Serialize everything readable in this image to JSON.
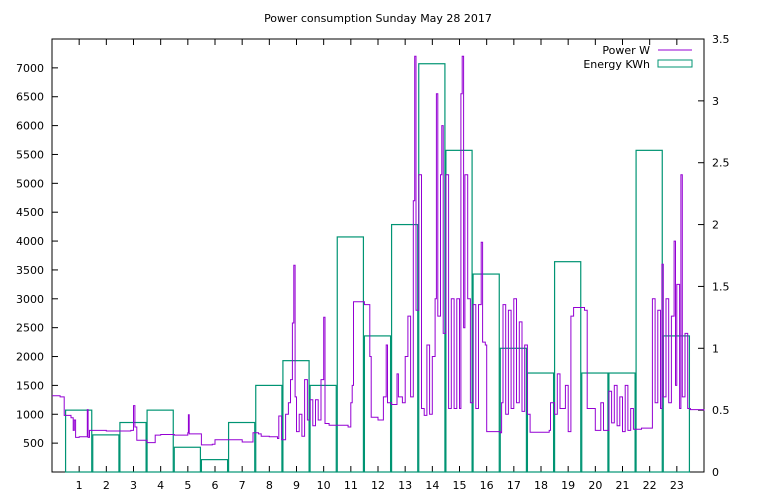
{
  "chart_data": {
    "type": "line",
    "title": "Power consumption Sunday May 28 2017",
    "x": {
      "range": [
        0,
        24
      ],
      "ticks": [
        1,
        2,
        3,
        4,
        5,
        6,
        7,
        8,
        9,
        10,
        11,
        12,
        13,
        14,
        15,
        16,
        17,
        18,
        19,
        20,
        21,
        22,
        23
      ],
      "tick_labels": [
        "1",
        "2",
        "3",
        "4",
        "5",
        "6",
        "7",
        "8",
        "9",
        "10",
        "11",
        "12",
        "13",
        "14",
        "15",
        "16",
        "17",
        "18",
        "19",
        "20",
        "21",
        "22",
        "23"
      ]
    },
    "y_left": {
      "range": [
        0,
        7500
      ],
      "ticks": [
        500,
        1000,
        1500,
        2000,
        2500,
        3000,
        3500,
        4000,
        4500,
        5000,
        5500,
        6000,
        6500,
        7000
      ],
      "tick_labels": [
        "500",
        "1000",
        "1500",
        "2000",
        "2500",
        "3000",
        "3500",
        "4000",
        "4500",
        "5000",
        "5500",
        "6000",
        "6500",
        "7000"
      ]
    },
    "y_right": {
      "range": [
        0,
        3.5
      ],
      "ticks": [
        0,
        0.5,
        1,
        1.5,
        2,
        2.5,
        3,
        3.5
      ],
      "tick_labels": [
        "0",
        "0.5",
        "1",
        "1.5",
        "2",
        "2.5",
        "3",
        "3.5"
      ]
    },
    "legend": {
      "position": "top-right"
    },
    "grid": false,
    "series": [
      {
        "name": "Power W",
        "style": "step-line",
        "color": "#9400d3",
        "axis": "left",
        "points": [
          [
            0.0,
            1320
          ],
          [
            0.3,
            1300
          ],
          [
            0.45,
            980
          ],
          [
            0.7,
            940
          ],
          [
            0.78,
            720
          ],
          [
            0.82,
            900
          ],
          [
            0.87,
            600
          ],
          [
            1.0,
            610
          ],
          [
            1.3,
            1080
          ],
          [
            1.33,
            600
          ],
          [
            1.38,
            720
          ],
          [
            2.0,
            710
          ],
          [
            2.9,
            720
          ],
          [
            3.0,
            1150
          ],
          [
            3.05,
            780
          ],
          [
            3.12,
            550
          ],
          [
            3.5,
            510
          ],
          [
            3.8,
            640
          ],
          [
            4.0,
            650
          ],
          [
            4.5,
            640
          ],
          [
            5.0,
            680
          ],
          [
            5.02,
            990
          ],
          [
            5.05,
            660
          ],
          [
            5.5,
            470
          ],
          [
            5.9,
            480
          ],
          [
            6.0,
            560
          ],
          [
            6.5,
            560
          ],
          [
            7.0,
            520
          ],
          [
            7.3,
            520
          ],
          [
            7.4,
            680
          ],
          [
            7.6,
            660
          ],
          [
            7.7,
            620
          ],
          [
            8.0,
            610
          ],
          [
            8.3,
            580
          ],
          [
            8.35,
            970
          ],
          [
            8.45,
            560
          ],
          [
            8.5,
            560
          ],
          [
            8.6,
            1000
          ],
          [
            8.7,
            1200
          ],
          [
            8.78,
            1600
          ],
          [
            8.85,
            2580
          ],
          [
            8.9,
            3580
          ],
          [
            8.95,
            1300
          ],
          [
            9.0,
            700
          ],
          [
            9.1,
            1000
          ],
          [
            9.2,
            620
          ],
          [
            9.3,
            1600
          ],
          [
            9.4,
            900
          ],
          [
            9.5,
            1250
          ],
          [
            9.6,
            800
          ],
          [
            9.7,
            1250
          ],
          [
            9.8,
            900
          ],
          [
            9.9,
            1600
          ],
          [
            10.0,
            2680
          ],
          [
            10.05,
            840
          ],
          [
            10.2,
            810
          ],
          [
            10.9,
            780
          ],
          [
            11.0,
            1200
          ],
          [
            11.05,
            1500
          ],
          [
            11.1,
            2950
          ],
          [
            11.5,
            2900
          ],
          [
            11.7,
            2000
          ],
          [
            11.75,
            950
          ],
          [
            12.0,
            900
          ],
          [
            12.2,
            1300
          ],
          [
            12.3,
            2200
          ],
          [
            12.35,
            1200
          ],
          [
            12.5,
            1170
          ],
          [
            12.7,
            1700
          ],
          [
            12.75,
            1300
          ],
          [
            12.9,
            1200
          ],
          [
            13.0,
            2000
          ],
          [
            13.1,
            2700
          ],
          [
            13.2,
            1300
          ],
          [
            13.3,
            4700
          ],
          [
            13.35,
            7200
          ],
          [
            13.4,
            2800
          ],
          [
            13.5,
            5150
          ],
          [
            13.6,
            1100
          ],
          [
            13.7,
            980
          ],
          [
            13.8,
            2200
          ],
          [
            13.9,
            1000
          ],
          [
            14.0,
            2000
          ],
          [
            14.1,
            3000
          ],
          [
            14.15,
            6550
          ],
          [
            14.2,
            2700
          ],
          [
            14.3,
            5150
          ],
          [
            14.35,
            6000
          ],
          [
            14.4,
            2400
          ],
          [
            14.5,
            5150
          ],
          [
            14.6,
            1100
          ],
          [
            14.7,
            3000
          ],
          [
            14.8,
            1100
          ],
          [
            14.9,
            3000
          ],
          [
            15.0,
            1100
          ],
          [
            15.05,
            6550
          ],
          [
            15.1,
            7200
          ],
          [
            15.15,
            2500
          ],
          [
            15.2,
            5150
          ],
          [
            15.3,
            3000
          ],
          [
            15.4,
            1200
          ],
          [
            15.5,
            2900
          ],
          [
            15.6,
            1100
          ],
          [
            15.7,
            2900
          ],
          [
            15.8,
            3980
          ],
          [
            15.85,
            2250
          ],
          [
            15.95,
            2200
          ],
          [
            16.0,
            700
          ],
          [
            16.5,
            680
          ],
          [
            16.55,
            1200
          ],
          [
            16.6,
            2900
          ],
          [
            16.7,
            1000
          ],
          [
            16.8,
            2800
          ],
          [
            16.9,
            1100
          ],
          [
            17.0,
            3000
          ],
          [
            17.1,
            1200
          ],
          [
            17.2,
            2600
          ],
          [
            17.3,
            1050
          ],
          [
            17.4,
            2200
          ],
          [
            17.5,
            1000
          ],
          [
            17.6,
            690
          ],
          [
            18.0,
            690
          ],
          [
            18.3,
            720
          ],
          [
            18.35,
            1200
          ],
          [
            18.5,
            1000
          ],
          [
            18.6,
            1700
          ],
          [
            18.7,
            1100
          ],
          [
            18.9,
            1500
          ],
          [
            19.0,
            700
          ],
          [
            19.1,
            2700
          ],
          [
            19.2,
            2850
          ],
          [
            19.6,
            2800
          ],
          [
            19.7,
            1100
          ],
          [
            19.9,
            1100
          ],
          [
            20.0,
            720
          ],
          [
            20.2,
            1200
          ],
          [
            20.3,
            720
          ],
          [
            20.5,
            1400
          ],
          [
            20.6,
            850
          ],
          [
            20.7,
            1500
          ],
          [
            20.8,
            800
          ],
          [
            20.9,
            1300
          ],
          [
            21.0,
            700
          ],
          [
            21.1,
            1500
          ],
          [
            21.2,
            720
          ],
          [
            21.3,
            1100
          ],
          [
            21.4,
            740
          ],
          [
            21.7,
            760
          ],
          [
            22.0,
            760
          ],
          [
            22.1,
            3000
          ],
          [
            22.2,
            1200
          ],
          [
            22.3,
            2800
          ],
          [
            22.4,
            1100
          ],
          [
            22.45,
            3600
          ],
          [
            22.5,
            1300
          ],
          [
            22.6,
            3000
          ],
          [
            22.7,
            1200
          ],
          [
            22.8,
            2700
          ],
          [
            22.9,
            4000
          ],
          [
            22.95,
            1500
          ],
          [
            23.0,
            3250
          ],
          [
            23.1,
            1100
          ],
          [
            23.15,
            5150
          ],
          [
            23.2,
            1300
          ],
          [
            23.3,
            2400
          ],
          [
            23.4,
            1100
          ],
          [
            23.5,
            1080
          ],
          [
            24.0,
            1060
          ]
        ]
      },
      {
        "name": "Energy KWh",
        "style": "boxes",
        "color": "#009473",
        "axis": "right",
        "bars": [
          {
            "x": 1,
            "value": 0.5
          },
          {
            "x": 2,
            "value": 0.3
          },
          {
            "x": 3,
            "value": 0.4
          },
          {
            "x": 4,
            "value": 0.5
          },
          {
            "x": 5,
            "value": 0.2
          },
          {
            "x": 6,
            "value": 0.1
          },
          {
            "x": 7,
            "value": 0.4
          },
          {
            "x": 8,
            "value": 0.7
          },
          {
            "x": 9,
            "value": 0.9
          },
          {
            "x": 10,
            "value": 0.7
          },
          {
            "x": 11,
            "value": 1.9
          },
          {
            "x": 12,
            "value": 1.1
          },
          {
            "x": 13,
            "value": 2.0
          },
          {
            "x": 14,
            "value": 3.3
          },
          {
            "x": 15,
            "value": 2.6
          },
          {
            "x": 16,
            "value": 1.6
          },
          {
            "x": 17,
            "value": 1.0
          },
          {
            "x": 18,
            "value": 0.8
          },
          {
            "x": 19,
            "value": 1.7
          },
          {
            "x": 20,
            "value": 0.8
          },
          {
            "x": 21,
            "value": 0.8
          },
          {
            "x": 22,
            "value": 2.6
          },
          {
            "x": 23,
            "value": 1.1
          }
        ]
      }
    ]
  }
}
